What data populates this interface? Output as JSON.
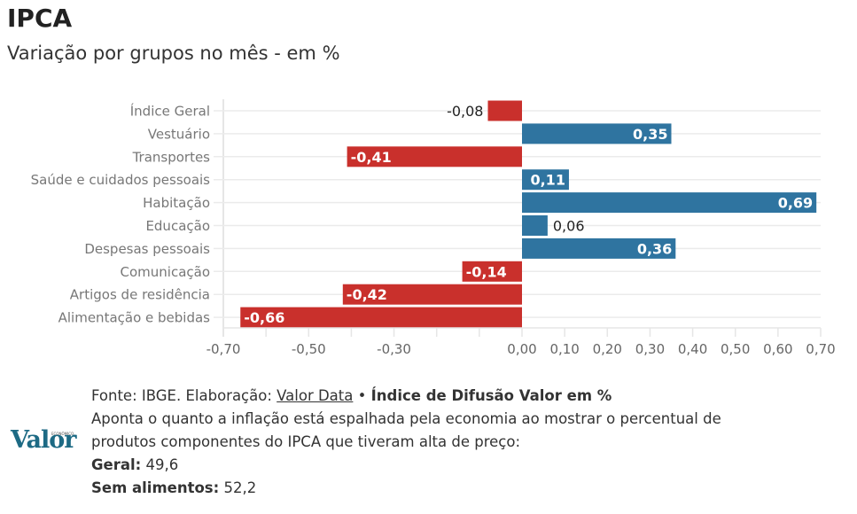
{
  "header": {
    "title": "IPCA",
    "subtitle": "Variação por grupos no mês - em %"
  },
  "chart_data": {
    "type": "bar",
    "orientation": "horizontal",
    "title": "IPCA",
    "subtitle": "Variação por grupos no mês - em %",
    "xlabel": "",
    "ylabel": "",
    "categories": [
      "Índice Geral",
      "Vestuário",
      "Transportes",
      "Saúde e cuidados pessoais",
      "Habitação",
      "Educação",
      "Despesas pessoais",
      "Comunicação",
      "Artigos de residência",
      "Alimentação e bebidas"
    ],
    "values": [
      -0.08,
      0.35,
      -0.41,
      0.11,
      0.69,
      0.06,
      0.36,
      -0.14,
      -0.42,
      -0.66
    ],
    "value_labels": [
      "-0,08",
      "0,35",
      "-0,41",
      "0,11",
      "0,69",
      "0,06",
      "0,36",
      "-0,14",
      "-0,42",
      "-0,66"
    ],
    "xlim": [
      -0.7,
      0.7
    ],
    "x_ticks": [
      -0.7,
      -0.6,
      -0.5,
      -0.4,
      -0.3,
      -0.2,
      -0.1,
      0.0,
      0.1,
      0.2,
      0.3,
      0.4,
      0.5,
      0.6,
      0.7
    ],
    "x_tick_labels": [
      "-0,70",
      "",
      "-0,50",
      "",
      "-0,30",
      "",
      "",
      "0,00",
      "0,10",
      "0,20",
      "0,30",
      "0,40",
      "0,50",
      "0,60",
      "0,70"
    ],
    "grid": true,
    "legend": "none",
    "colors": {
      "positive": "#2f74a0",
      "negative": "#c9302c"
    }
  },
  "footer": {
    "source_prefix": "Fonte: IBGE. Elaboração: ",
    "source_link": "Valor Data",
    "bullet": " • ",
    "diffusion_title": "Índice de Difusão Valor em %",
    "description_line1": "Aponta o quanto a inflação está espalhada pela economia ao mostrar o percentual de",
    "description_line2": "produtos componentes do IPCA que tiveram alta de preço:",
    "geral_label": "Geral:",
    "geral_value": " 49,6",
    "sem_alimentos_label": "Sem alimentos:",
    "sem_alimentos_value": " 52,2"
  },
  "logo": {
    "name": "Valor",
    "tagline": "ECONÔMICO",
    "color": "#1d6a84"
  }
}
